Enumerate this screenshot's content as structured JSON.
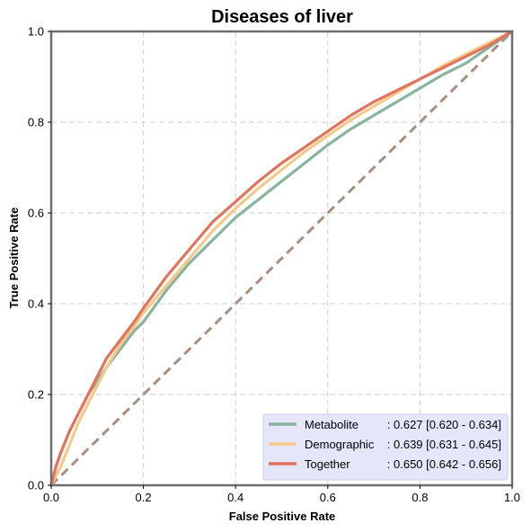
{
  "chart_data": {
    "type": "line",
    "title": "Diseases of liver",
    "xlabel": "False Positive Rate",
    "ylabel": "True Positive Rate",
    "xlim": [
      0,
      1
    ],
    "ylim": [
      0,
      1
    ],
    "xticks": [
      "0.0",
      "0.2",
      "0.4",
      "0.6",
      "0.8",
      "1.0"
    ],
    "yticks": [
      "0.0",
      "0.2",
      "0.4",
      "0.6",
      "0.8",
      "1.0"
    ],
    "grid": true,
    "legend_position": "bottom-right",
    "diagonal": {
      "x": [
        0,
        1
      ],
      "y": [
        0,
        1
      ],
      "color": "#a88f82"
    },
    "series": [
      {
        "name": "Metabolite",
        "auc_label": ": 0.627 [0.620 - 0.634]",
        "color": "#86b49c",
        "x": [
          0,
          0.01,
          0.02,
          0.04,
          0.06,
          0.08,
          0.1,
          0.12,
          0.15,
          0.18,
          0.2,
          0.25,
          0.3,
          0.35,
          0.4,
          0.45,
          0.5,
          0.55,
          0.6,
          0.65,
          0.7,
          0.75,
          0.8,
          0.85,
          0.9,
          0.95,
          1.0
        ],
        "y": [
          0,
          0.04,
          0.07,
          0.12,
          0.16,
          0.2,
          0.23,
          0.26,
          0.3,
          0.34,
          0.36,
          0.43,
          0.49,
          0.54,
          0.59,
          0.63,
          0.67,
          0.71,
          0.75,
          0.785,
          0.815,
          0.845,
          0.875,
          0.905,
          0.93,
          0.965,
          1.0
        ]
      },
      {
        "name": "Demographic",
        "auc_label": ": 0.639 [0.631 - 0.645]",
        "color": "#f5c98a",
        "x": [
          0,
          0.01,
          0.02,
          0.04,
          0.06,
          0.08,
          0.1,
          0.12,
          0.15,
          0.18,
          0.2,
          0.25,
          0.3,
          0.35,
          0.4,
          0.45,
          0.5,
          0.55,
          0.6,
          0.65,
          0.7,
          0.75,
          0.8,
          0.85,
          0.9,
          0.95,
          1.0
        ],
        "y": [
          0,
          0.02,
          0.04,
          0.09,
          0.14,
          0.18,
          0.22,
          0.26,
          0.31,
          0.35,
          0.38,
          0.44,
          0.5,
          0.56,
          0.61,
          0.655,
          0.695,
          0.735,
          0.77,
          0.805,
          0.835,
          0.865,
          0.895,
          0.925,
          0.95,
          0.975,
          1.0
        ]
      },
      {
        "name": "Together",
        "auc_label": ": 0.650 [0.642 - 0.656]",
        "color": "#e07460",
        "x": [
          0,
          0.01,
          0.02,
          0.04,
          0.06,
          0.08,
          0.1,
          0.12,
          0.15,
          0.18,
          0.2,
          0.25,
          0.3,
          0.35,
          0.4,
          0.45,
          0.5,
          0.55,
          0.6,
          0.65,
          0.7,
          0.75,
          0.8,
          0.85,
          0.9,
          0.95,
          1.0
        ],
        "y": [
          0,
          0.04,
          0.07,
          0.12,
          0.16,
          0.2,
          0.24,
          0.28,
          0.32,
          0.36,
          0.39,
          0.46,
          0.52,
          0.58,
          0.625,
          0.67,
          0.71,
          0.745,
          0.78,
          0.815,
          0.845,
          0.87,
          0.895,
          0.92,
          0.945,
          0.97,
          1.0
        ]
      }
    ]
  }
}
